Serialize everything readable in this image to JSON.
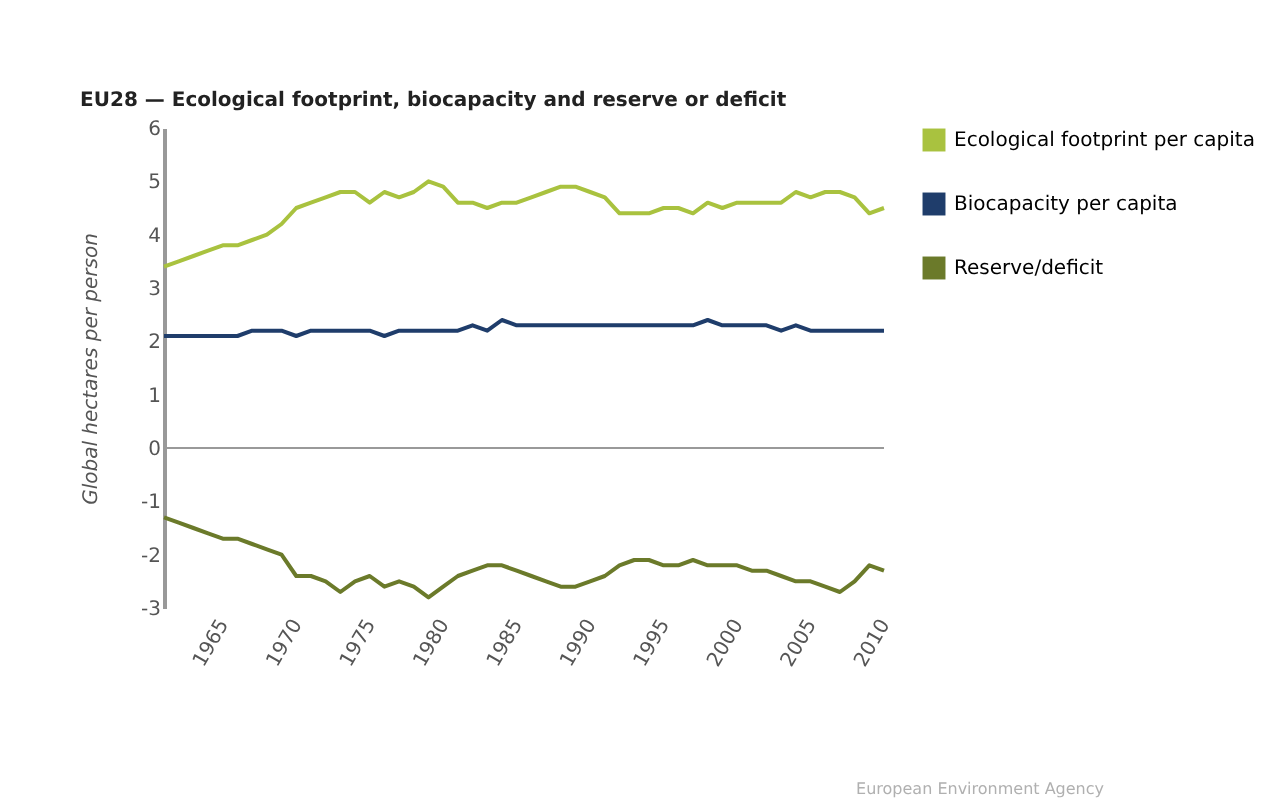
{
  "chart_data": {
    "type": "line",
    "title": "EU28 — Ecological footprint, biocapacity and reserve or deficit",
    "ylabel": "Global hectares per person",
    "x": [
      1961,
      1962,
      1963,
      1964,
      1965,
      1966,
      1967,
      1968,
      1969,
      1970,
      1971,
      1972,
      1973,
      1974,
      1975,
      1976,
      1977,
      1978,
      1979,
      1980,
      1981,
      1982,
      1983,
      1984,
      1985,
      1986,
      1987,
      1988,
      1989,
      1990,
      1991,
      1992,
      1993,
      1994,
      1995,
      1996,
      1997,
      1998,
      1999,
      2000,
      2001,
      2002,
      2003,
      2004,
      2005,
      2006,
      2007,
      2008,
      2009,
      2010
    ],
    "series": [
      {
        "name": "Ecological footprint per capita",
        "color": "#a9c23f",
        "values": [
          3.4,
          3.5,
          3.6,
          3.7,
          3.8,
          3.8,
          3.9,
          4.0,
          4.2,
          4.5,
          4.6,
          4.7,
          4.8,
          4.8,
          4.6,
          4.8,
          4.7,
          4.8,
          5.0,
          4.9,
          4.6,
          4.6,
          4.5,
          4.6,
          4.6,
          4.7,
          4.8,
          4.9,
          4.9,
          4.8,
          4.7,
          4.4,
          4.4,
          4.4,
          4.5,
          4.5,
          4.4,
          4.6,
          4.5,
          4.6,
          4.6,
          4.6,
          4.6,
          4.8,
          4.7,
          4.8,
          4.8,
          4.7,
          4.4,
          4.5
        ]
      },
      {
        "name": "Biocapacity per capita",
        "color": "#1f3d6b",
        "values": [
          2.1,
          2.1,
          2.1,
          2.1,
          2.1,
          2.1,
          2.2,
          2.2,
          2.2,
          2.1,
          2.2,
          2.2,
          2.2,
          2.2,
          2.2,
          2.1,
          2.2,
          2.2,
          2.2,
          2.2,
          2.2,
          2.3,
          2.2,
          2.4,
          2.3,
          2.3,
          2.3,
          2.3,
          2.3,
          2.3,
          2.3,
          2.3,
          2.3,
          2.3,
          2.3,
          2.3,
          2.3,
          2.4,
          2.3,
          2.3,
          2.3,
          2.3,
          2.2,
          2.3,
          2.2,
          2.2,
          2.2,
          2.2,
          2.2,
          2.2
        ]
      },
      {
        "name": "Reserve/deficit",
        "color": "#6b7a2a",
        "values": [
          -1.3,
          -1.4,
          -1.5,
          -1.6,
          -1.7,
          -1.7,
          -1.8,
          -1.9,
          -2.0,
          -2.4,
          -2.4,
          -2.5,
          -2.7,
          -2.5,
          -2.4,
          -2.6,
          -2.5,
          -2.6,
          -2.8,
          -2.6,
          -2.4,
          -2.3,
          -2.2,
          -2.2,
          -2.3,
          -2.4,
          -2.5,
          -2.6,
          -2.6,
          -2.5,
          -2.4,
          -2.2,
          -2.1,
          -2.1,
          -2.2,
          -2.2,
          -2.1,
          -2.2,
          -2.2,
          -2.2,
          -2.3,
          -2.3,
          -2.4,
          -2.5,
          -2.5,
          -2.6,
          -2.7,
          -2.5,
          -2.2,
          -2.3
        ]
      }
    ],
    "xlim": [
      1961,
      2010
    ],
    "xticks": [
      1965,
      1970,
      1975,
      1980,
      1985,
      1990,
      1995,
      2000,
      2005,
      2010
    ],
    "ylim": [
      -3,
      6
    ],
    "yticks": [
      -3,
      -2,
      -1,
      0,
      1,
      2,
      3,
      4,
      5,
      6
    ],
    "ref_lines": [
      {
        "axis": "y",
        "value": 0,
        "label": null,
        "color": "#999999"
      }
    ],
    "annotations": [
      "European Environment Agency"
    ],
    "grid": false,
    "legend": "top right",
    "marker": "none",
    "line_style": "solid"
  }
}
